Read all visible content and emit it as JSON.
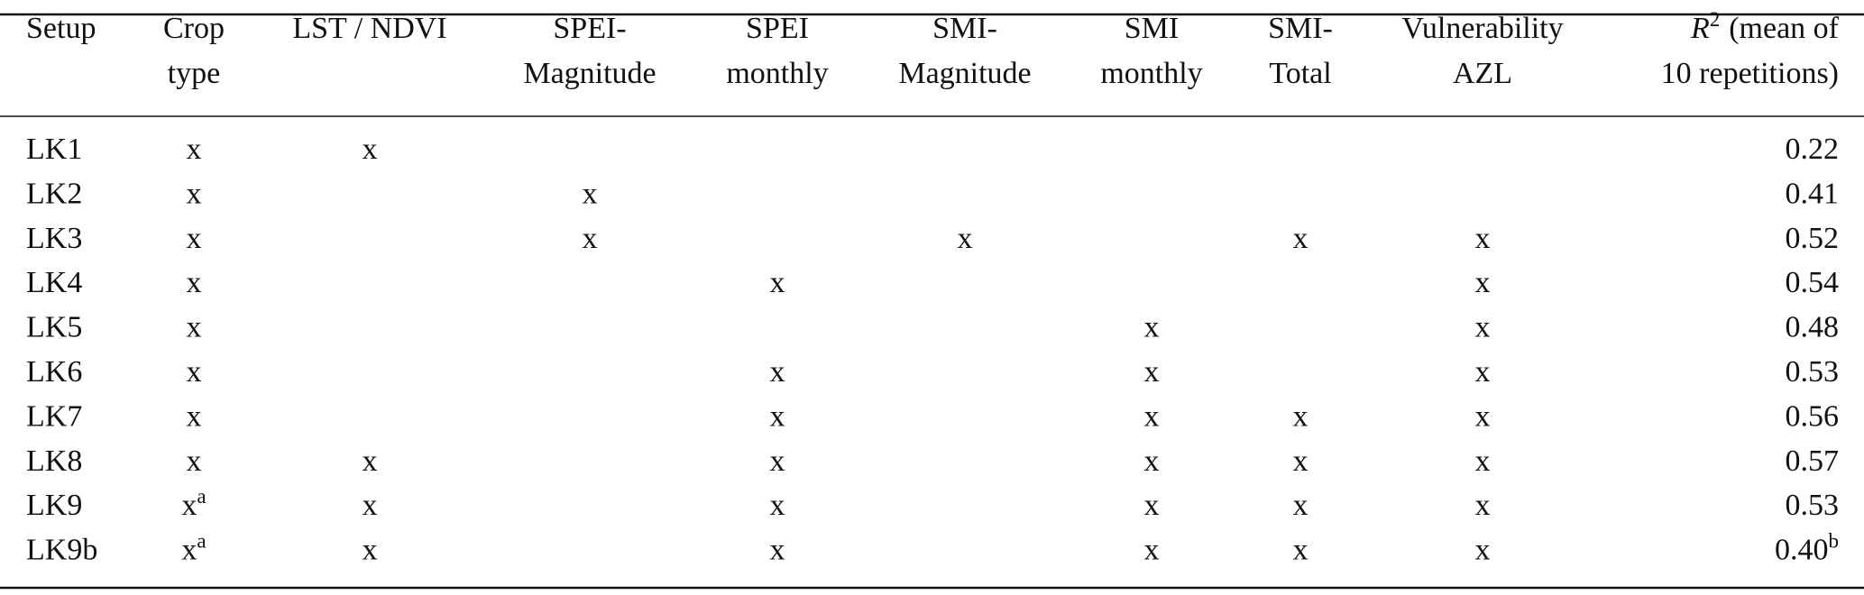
{
  "table": {
    "header": [
      [
        "Setup"
      ],
      [
        "Crop",
        "type"
      ],
      [
        "LST / NDVI"
      ],
      [
        "SPEI-",
        "Magnitude"
      ],
      [
        "SPEI",
        "monthly"
      ],
      [
        "SMI-",
        "Magnitude"
      ],
      [
        "SMI",
        "monthly"
      ],
      [
        "SMI-",
        "Total"
      ],
      [
        "Vulnerability",
        "AZL"
      ],
      [
        {
          "symbol": "R",
          "sup": "2",
          "text": "(mean of"
        },
        "10 repetitions)"
      ]
    ],
    "rows": [
      [
        "LK1",
        "x",
        "x",
        null,
        null,
        null,
        null,
        null,
        null,
        "0.22"
      ],
      [
        "LK2",
        "x",
        null,
        "x",
        null,
        null,
        null,
        null,
        null,
        "0.41"
      ],
      [
        "LK3",
        "x",
        null,
        "x",
        null,
        "x",
        null,
        "x",
        "x",
        "0.52"
      ],
      [
        "LK4",
        "x",
        null,
        null,
        "x",
        null,
        null,
        null,
        "x",
        "0.54"
      ],
      [
        "LK5",
        "x",
        null,
        null,
        null,
        null,
        "x",
        null,
        "x",
        "0.48"
      ],
      [
        "LK6",
        "x",
        null,
        null,
        "x",
        null,
        "x",
        null,
        "x",
        "0.53"
      ],
      [
        "LK7",
        "x",
        null,
        null,
        "x",
        null,
        "x",
        "x",
        "x",
        "0.56"
      ],
      [
        "LK8",
        "x",
        "x",
        null,
        "x",
        null,
        "x",
        "x",
        "x",
        "0.57"
      ],
      [
        "LK9",
        {
          "text": "x",
          "sup": "a"
        },
        "x",
        null,
        "x",
        null,
        "x",
        "x",
        "x",
        "0.53"
      ],
      [
        "LK9b",
        {
          "text": "x",
          "sup": "a"
        },
        "x",
        null,
        "x",
        null,
        "x",
        "x",
        "x",
        {
          "text": "0.40",
          "sup": "b"
        }
      ]
    ]
  }
}
